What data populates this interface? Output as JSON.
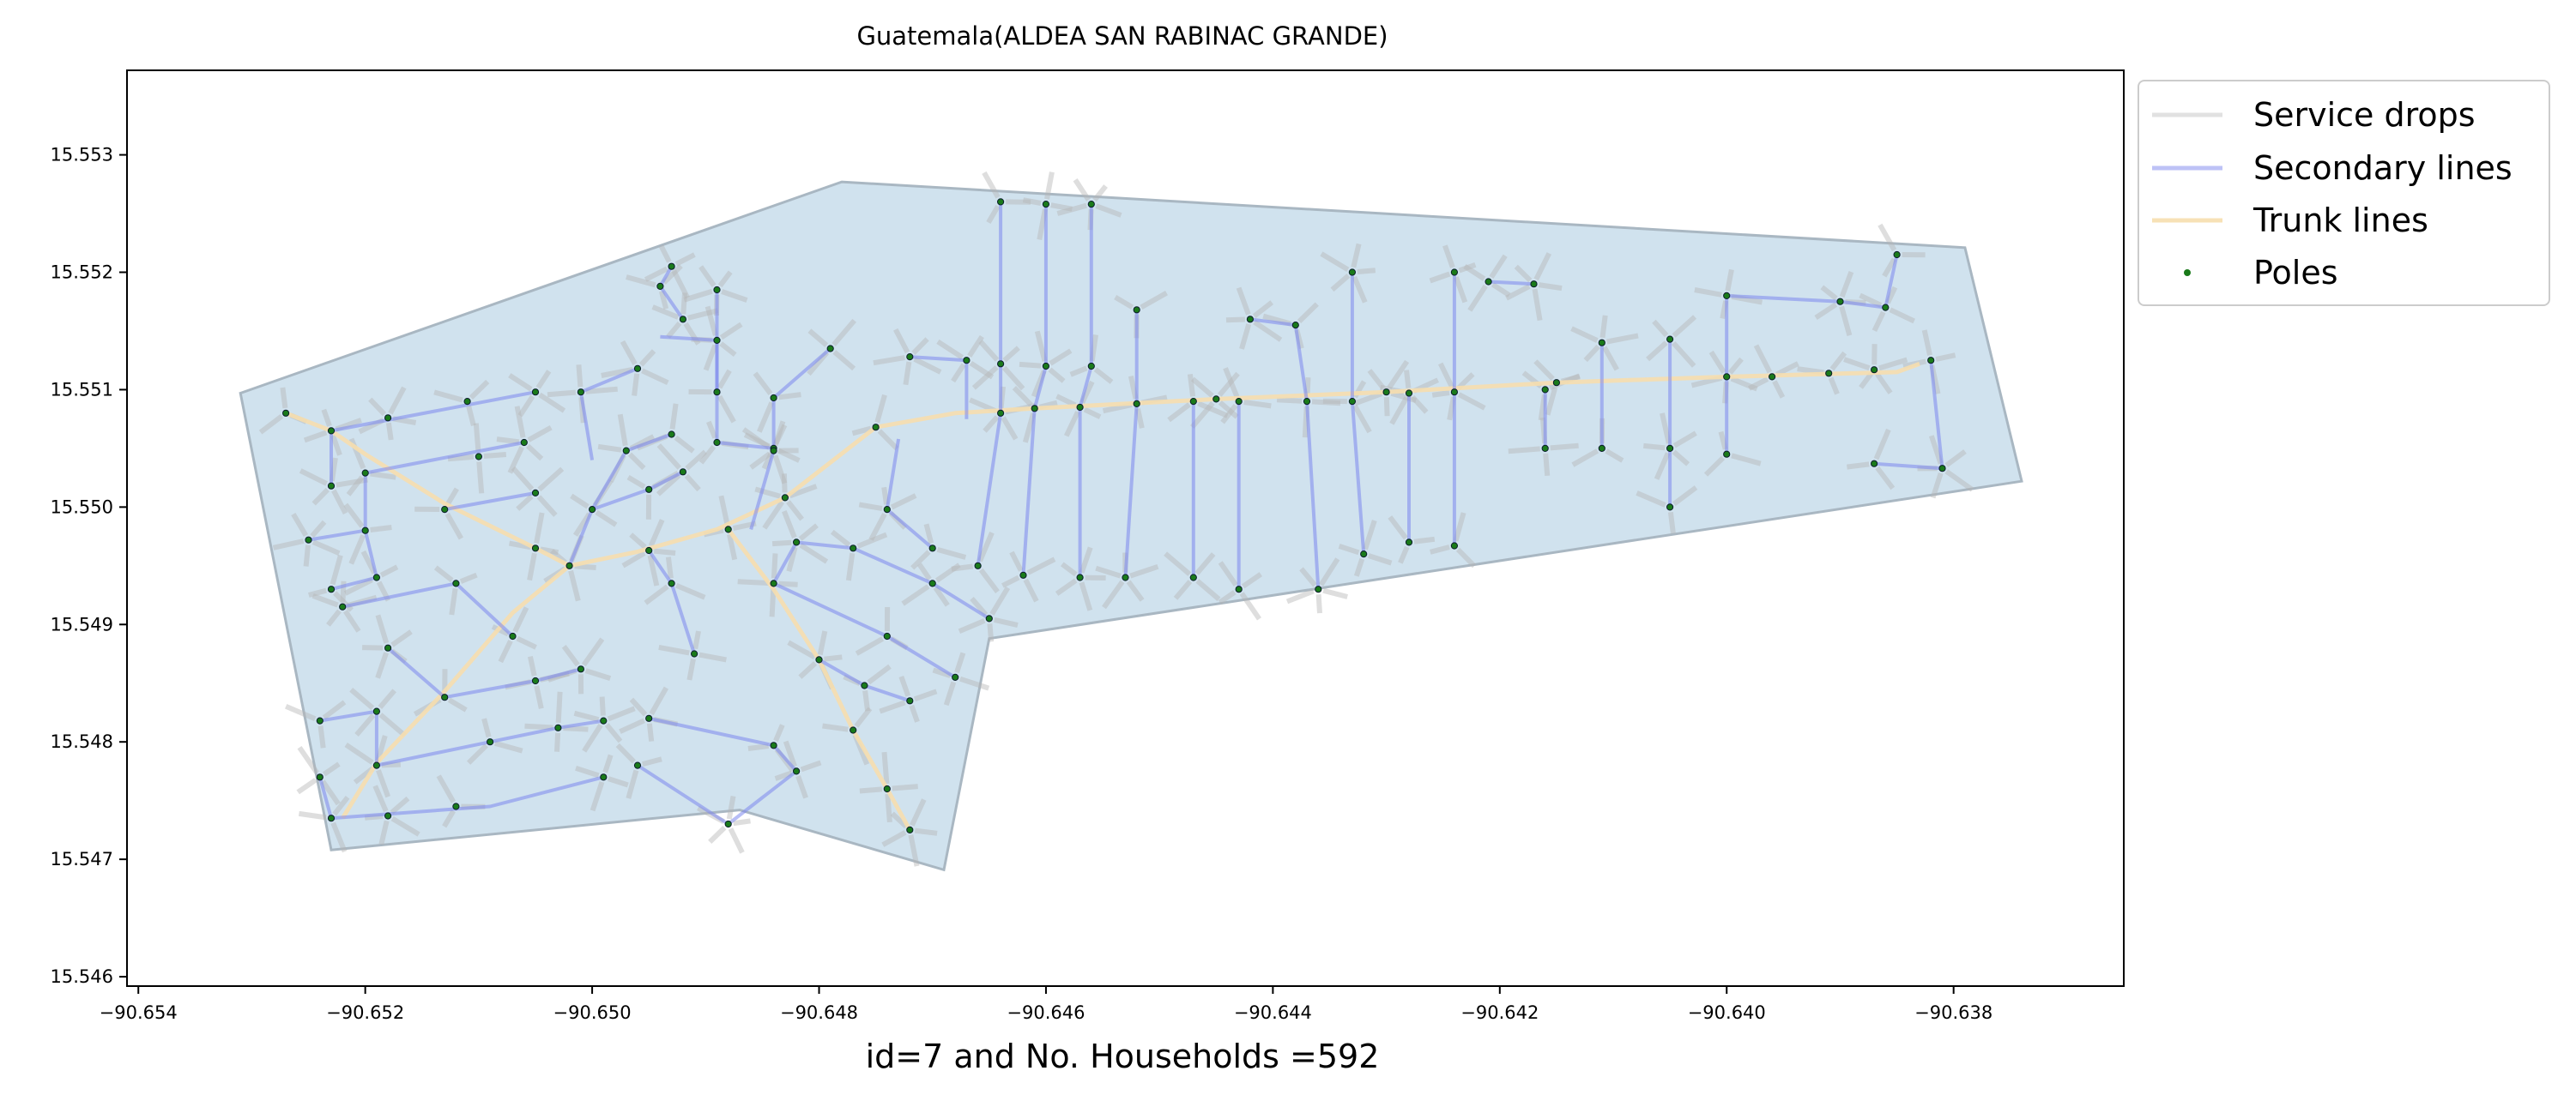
{
  "title": "Guatemala(ALDEA SAN RABINAC GRANDE)",
  "xlabel": "id=7 and No. Households =592",
  "ylabel": "",
  "colors": {
    "area_fill": "#d0e2ee",
    "area_edge": "#a9b7c2",
    "service_drops": "#b5b5b5",
    "secondary_lines": "#7c86ee",
    "trunk_lines": "#f6deae",
    "poles": "#1a7a1a",
    "pole_core": "#0b1c2c"
  },
  "legend": {
    "placement": "upper-right-outside",
    "items": [
      {
        "label": "Service drops",
        "kind": "line",
        "color_key": "service_drops"
      },
      {
        "label": "Secondary lines",
        "kind": "line",
        "color_key": "secondary_lines"
      },
      {
        "label": "Trunk lines",
        "kind": "line",
        "color_key": "trunk_lines"
      },
      {
        "label": "Poles",
        "kind": "dot",
        "color_key": "poles"
      }
    ]
  },
  "chart_data": {
    "type": "map",
    "title": "Guatemala(ALDEA SAN RABINAC GRANDE)",
    "xlabel": "id=7 and No. Households =592",
    "xlim": [
      -90.6541,
      -90.6365
    ],
    "ylim": [
      15.54592,
      15.55372
    ],
    "xticks": [
      -90.654,
      -90.652,
      -90.65,
      -90.648,
      -90.646,
      -90.644,
      -90.642,
      -90.64,
      -90.638
    ],
    "xtick_labels": [
      "−90.654",
      "−90.652",
      "−90.650",
      "−90.648",
      "−90.646",
      "−90.644",
      "−90.642",
      "−90.640",
      "−90.638"
    ],
    "yticks": [
      15.546,
      15.547,
      15.548,
      15.549,
      15.55,
      15.551,
      15.552,
      15.553
    ],
    "ytick_labels": [
      "15.546",
      "15.547",
      "15.548",
      "15.549",
      "15.550",
      "15.551",
      "15.552",
      "15.553"
    ],
    "grid": false,
    "boundary": [
      [
        -90.6531,
        15.55097
      ],
      [
        -90.6478,
        15.55277
      ],
      [
        -90.6379,
        15.55221
      ],
      [
        -90.6374,
        15.55022
      ],
      [
        -90.6465,
        15.54888
      ],
      [
        -90.6469,
        15.54691
      ],
      [
        -90.6487,
        15.54742
      ],
      [
        -90.6523,
        15.54708
      ],
      [
        -90.6531,
        15.55097
      ]
    ],
    "trunk_lines": [
      [
        [
          -90.6527,
          15.5508
        ],
        [
          -90.6523,
          15.55065
        ],
        [
          -90.652,
          15.55045
        ],
        [
          -90.6513,
          15.55003
        ],
        [
          -90.6505,
          15.54965
        ],
        [
          -90.6502,
          15.5495
        ],
        [
          -90.6496,
          15.54962
        ],
        [
          -90.6489,
          15.54981
        ],
        [
          -90.6483,
          15.55008
        ],
        [
          -90.6475,
          15.55068
        ],
        [
          -90.6468,
          15.5508
        ],
        [
          -90.6461,
          15.55084
        ],
        [
          -90.6445,
          15.55092
        ],
        [
          -90.643,
          15.55098
        ],
        [
          -90.6415,
          15.55106
        ],
        [
          -90.64,
          15.55111
        ],
        [
          -90.6385,
          15.55115
        ],
        [
          -90.6383,
          15.55122
        ]
      ],
      [
        [
          -90.6502,
          15.5495
        ],
        [
          -90.6507,
          15.5491
        ],
        [
          -90.6513,
          15.54843
        ],
        [
          -90.6519,
          15.54782
        ],
        [
          -90.6522,
          15.54735
        ]
      ],
      [
        [
          -90.6488,
          15.54981
        ],
        [
          -90.6484,
          15.5493
        ],
        [
          -90.648,
          15.5487
        ],
        [
          -90.6477,
          15.5481
        ],
        [
          -90.6474,
          15.5476
        ],
        [
          -90.6472,
          15.54725
        ]
      ]
    ],
    "secondary_lines": [
      [
        [
          -90.6523,
          15.55065
        ],
        [
          -90.6505,
          15.55098
        ]
      ],
      [
        [
          -90.6523,
          15.55065
        ],
        [
          -90.6523,
          15.55018
        ]
      ],
      [
        [
          -90.652,
          15.55029
        ],
        [
          -90.6506,
          15.55055
        ]
      ],
      [
        [
          -90.652,
          15.55029
        ],
        [
          -90.652,
          15.5498
        ],
        [
          -90.6525,
          15.54972
        ]
      ],
      [
        [
          -90.652,
          15.5498
        ],
        [
          -90.6519,
          15.5494
        ],
        [
          -90.6523,
          15.5493
        ]
      ],
      [
        [
          -90.6513,
          15.54998
        ],
        [
          -90.6505,
          15.55012
        ]
      ],
      [
        [
          -90.6522,
          15.54915
        ],
        [
          -90.6512,
          15.54935
        ],
        [
          -90.6507,
          15.5489
        ]
      ],
      [
        [
          -90.6518,
          15.5488
        ],
        [
          -90.6513,
          15.54838
        ],
        [
          -90.6505,
          15.54852
        ],
        [
          -90.6501,
          15.54862
        ]
      ],
      [
        [
          -90.6524,
          15.54818
        ],
        [
          -90.6519,
          15.54826
        ],
        [
          -90.6519,
          15.5478
        ]
      ],
      [
        [
          -90.6519,
          15.5478
        ],
        [
          -90.6509,
          15.548
        ],
        [
          -90.6503,
          15.54812
        ],
        [
          -90.6499,
          15.54818
        ]
      ],
      [
        [
          -90.6523,
          15.54735
        ],
        [
          -90.6509,
          15.54745
        ],
        [
          -90.6499,
          15.5477
        ]
      ],
      [
        [
          -90.6523,
          15.54735
        ],
        [
          -90.6524,
          15.5477
        ]
      ],
      [
        [
          -90.6495,
          15.5482
        ],
        [
          -90.6484,
          15.54797
        ],
        [
          -90.6482,
          15.54775
        ]
      ],
      [
        [
          -90.6482,
          15.54775
        ],
        [
          -90.6488,
          15.5473
        ],
        [
          -90.6496,
          15.5478
        ]
      ],
      [
        [
          -90.6502,
          15.5495
        ],
        [
          -90.65,
          15.54998
        ],
        [
          -90.6497,
          15.55048
        ],
        [
          -90.6493,
          15.55062
        ]
      ],
      [
        [
          -90.65,
          15.5504
        ],
        [
          -90.6501,
          15.55098
        ],
        [
          -90.6496,
          15.55118
        ]
      ],
      [
        [
          -90.65,
          15.54998
        ],
        [
          -90.6495,
          15.55015
        ],
        [
          -90.6492,
          15.5503
        ]
      ],
      [
        [
          -90.6495,
          15.54963
        ],
        [
          -90.6493,
          15.54935
        ],
        [
          -90.6491,
          15.54875
        ]
      ],
      [
        [
          -90.6492,
          15.5516
        ],
        [
          -90.6494,
          15.55188
        ],
        [
          -90.6493,
          15.55205
        ]
      ],
      [
        [
          -90.6494,
          15.55145
        ],
        [
          -90.6489,
          15.55142
        ],
        [
          -90.6489,
          15.55055
        ],
        [
          -90.6484,
          15.5505
        ]
      ],
      [
        [
          -90.6489,
          15.55185
        ],
        [
          -90.6489,
          15.55098
        ]
      ],
      [
        [
          -90.6486,
          15.54981
        ],
        [
          -90.6484,
          15.55048
        ],
        [
          -90.6484,
          15.55093
        ],
        [
          -90.6479,
          15.55135
        ]
      ],
      [
        [
          -90.6484,
          15.54935
        ],
        [
          -90.6482,
          15.5497
        ],
        [
          -90.6477,
          15.54965
        ],
        [
          -90.647,
          15.54935
        ],
        [
          -90.6465,
          15.54905
        ]
      ],
      [
        [
          -90.6484,
          15.54935
        ],
        [
          -90.6474,
          15.5489
        ],
        [
          -90.6468,
          15.54855
        ]
      ],
      [
        [
          -90.648,
          15.5487
        ],
        [
          -90.6476,
          15.54848
        ],
        [
          -90.6472,
          15.54835
        ]
      ],
      [
        [
          -90.6473,
          15.55058
        ],
        [
          -90.6474,
          15.54998
        ],
        [
          -90.647,
          15.54965
        ]
      ],
      [
        [
          -90.6467,
          15.55075
        ],
        [
          -90.6467,
          15.55125
        ],
        [
          -90.6472,
          15.55128
        ]
      ],
      [
        [
          -90.6464,
          15.5526
        ],
        [
          -90.6464,
          15.55122
        ],
        [
          -90.6464,
          15.5508
        ],
        [
          -90.6466,
          15.5495
        ]
      ],
      [
        [
          -90.646,
          15.55258
        ],
        [
          -90.646,
          15.5512
        ],
        [
          -90.6461,
          15.55084
        ],
        [
          -90.6462,
          15.54942
        ]
      ],
      [
        [
          -90.6456,
          15.55258
        ],
        [
          -90.6456,
          15.5512
        ],
        [
          -90.6457,
          15.55085
        ],
        [
          -90.6457,
          15.5494
        ]
      ],
      [
        [
          -90.6452,
          15.55168
        ],
        [
          -90.6452,
          15.55088
        ],
        [
          -90.6453,
          15.5494
        ]
      ],
      [
        [
          -90.6447,
          15.5509
        ],
        [
          -90.6447,
          15.5494
        ]
      ],
      [
        [
          -90.6442,
          15.5516
        ],
        [
          -90.6438,
          15.55155
        ],
        [
          -90.6437,
          15.5509
        ],
        [
          -90.6436,
          15.5493
        ]
      ],
      [
        [
          -90.6443,
          15.5509
        ],
        [
          -90.6443,
          15.5493
        ]
      ],
      [
        [
          -90.6433,
          15.552
        ],
        [
          -90.6433,
          15.5509
        ],
        [
          -90.6432,
          15.5496
        ]
      ],
      [
        [
          -90.6428,
          15.55097
        ],
        [
          -90.6428,
          15.5497
        ]
      ],
      [
        [
          -90.6424,
          15.552
        ],
        [
          -90.6424,
          15.55098
        ],
        [
          -90.6424,
          15.54967
        ]
      ],
      [
        [
          -90.6421,
          15.55192
        ],
        [
          -90.6417,
          15.5519
        ]
      ],
      [
        [
          -90.6416,
          15.551
        ],
        [
          -90.6416,
          15.5505
        ]
      ],
      [
        [
          -90.6411,
          15.5514
        ],
        [
          -90.6411,
          15.5505
        ]
      ],
      [
        [
          -90.6405,
          15.55143
        ],
        [
          -90.6405,
          15.5505
        ],
        [
          -90.6405,
          15.55
        ]
      ],
      [
        [
          -90.64,
          15.5518
        ],
        [
          -90.64,
          15.55045
        ]
      ],
      [
        [
          -90.64,
          15.5518
        ],
        [
          -90.639,
          15.55175
        ],
        [
          -90.6386,
          15.5517
        ]
      ],
      [
        [
          -90.6386,
          15.5517
        ],
        [
          -90.6385,
          15.55215
        ]
      ],
      [
        [
          -90.6382,
          15.55125
        ],
        [
          -90.6381,
          15.55033
        ],
        [
          -90.6387,
          15.55037
        ]
      ]
    ],
    "poles": [
      [
        -90.6527,
        15.5508
      ],
      [
        -90.6523,
        15.55065
      ],
      [
        -90.6518,
        15.55076
      ],
      [
        -90.6511,
        15.5509
      ],
      [
        -90.6505,
        15.55098
      ],
      [
        -90.6523,
        15.55018
      ],
      [
        -90.652,
        15.55029
      ],
      [
        -90.651,
        15.55043
      ],
      [
        -90.6506,
        15.55055
      ],
      [
        -90.6513,
        15.54998
      ],
      [
        -90.6505,
        15.55012
      ],
      [
        -90.6525,
        15.54972
      ],
      [
        -90.652,
        15.5498
      ],
      [
        -90.6505,
        15.54965
      ],
      [
        -90.6502,
        15.5495
      ],
      [
        -90.6523,
        15.5493
      ],
      [
        -90.6519,
        15.5494
      ],
      [
        -90.6522,
        15.54915
      ],
      [
        -90.6512,
        15.54935
      ],
      [
        -90.6507,
        15.5489
      ],
      [
        -90.6518,
        15.5488
      ],
      [
        -90.6513,
        15.54838
      ],
      [
        -90.6505,
        15.54852
      ],
      [
        -90.6501,
        15.54862
      ],
      [
        -90.6524,
        15.54818
      ],
      [
        -90.6519,
        15.54826
      ],
      [
        -90.6519,
        15.5478
      ],
      [
        -90.6509,
        15.548
      ],
      [
        -90.6503,
        15.54812
      ],
      [
        -90.6499,
        15.54818
      ],
      [
        -90.6523,
        15.54735
      ],
      [
        -90.6524,
        15.5477
      ],
      [
        -90.6518,
        15.54737
      ],
      [
        -90.6512,
        15.54745
      ],
      [
        -90.6499,
        15.5477
      ],
      [
        -90.6495,
        15.5482
      ],
      [
        -90.6484,
        15.54797
      ],
      [
        -90.6482,
        15.54775
      ],
      [
        -90.6488,
        15.5473
      ],
      [
        -90.6496,
        15.5478
      ],
      [
        -90.65,
        15.54998
      ],
      [
        -90.6497,
        15.55048
      ],
      [
        -90.6493,
        15.55062
      ],
      [
        -90.6501,
        15.55098
      ],
      [
        -90.6496,
        15.55118
      ],
      [
        -90.6495,
        15.55015
      ],
      [
        -90.6492,
        15.5503
      ],
      [
        -90.6495,
        15.54963
      ],
      [
        -90.6493,
        15.54935
      ],
      [
        -90.6491,
        15.54875
      ],
      [
        -90.6492,
        15.5516
      ],
      [
        -90.6494,
        15.55188
      ],
      [
        -90.6493,
        15.55205
      ],
      [
        -90.6489,
        15.55142
      ],
      [
        -90.6489,
        15.55055
      ],
      [
        -90.6484,
        15.5505
      ],
      [
        -90.6489,
        15.55185
      ],
      [
        -90.6489,
        15.55098
      ],
      [
        -90.6488,
        15.54981
      ],
      [
        -90.6484,
        15.55048
      ],
      [
        -90.6484,
        15.55093
      ],
      [
        -90.6479,
        15.55135
      ],
      [
        -90.6483,
        15.55008
      ],
      [
        -90.6475,
        15.55068
      ],
      [
        -90.6484,
        15.54935
      ],
      [
        -90.6482,
        15.5497
      ],
      [
        -90.6477,
        15.54965
      ],
      [
        -90.647,
        15.54935
      ],
      [
        -90.6465,
        15.54905
      ],
      [
        -90.6474,
        15.5489
      ],
      [
        -90.6468,
        15.54855
      ],
      [
        -90.648,
        15.5487
      ],
      [
        -90.6476,
        15.54848
      ],
      [
        -90.6472,
        15.54835
      ],
      [
        -90.6474,
        15.54998
      ],
      [
        -90.647,
        15.54965
      ],
      [
        -90.6467,
        15.55125
      ],
      [
        -90.6472,
        15.55128
      ],
      [
        -90.6477,
        15.5481
      ],
      [
        -90.6474,
        15.5476
      ],
      [
        -90.6472,
        15.54725
      ],
      [
        -90.6464,
        15.5526
      ],
      [
        -90.6464,
        15.55122
      ],
      [
        -90.6464,
        15.5508
      ],
      [
        -90.6466,
        15.5495
      ],
      [
        -90.646,
        15.55258
      ],
      [
        -90.646,
        15.5512
      ],
      [
        -90.6461,
        15.55084
      ],
      [
        -90.6462,
        15.54942
      ],
      [
        -90.6456,
        15.55258
      ],
      [
        -90.6456,
        15.5512
      ],
      [
        -90.6457,
        15.55085
      ],
      [
        -90.6457,
        15.5494
      ],
      [
        -90.6452,
        15.55168
      ],
      [
        -90.6452,
        15.55088
      ],
      [
        -90.6453,
        15.5494
      ],
      [
        -90.6447,
        15.5509
      ],
      [
        -90.6447,
        15.5494
      ],
      [
        -90.6442,
        15.5516
      ],
      [
        -90.6438,
        15.55155
      ],
      [
        -90.6437,
        15.5509
      ],
      [
        -90.6436,
        15.5493
      ],
      [
        -90.6443,
        15.5509
      ],
      [
        -90.6443,
        15.5493
      ],
      [
        -90.6433,
        15.552
      ],
      [
        -90.6433,
        15.5509
      ],
      [
        -90.6432,
        15.5496
      ],
      [
        -90.6428,
        15.55097
      ],
      [
        -90.6428,
        15.5497
      ],
      [
        -90.6424,
        15.552
      ],
      [
        -90.6424,
        15.55098
      ],
      [
        -90.6424,
        15.54967
      ],
      [
        -90.6421,
        15.55192
      ],
      [
        -90.6417,
        15.5519
      ],
      [
        -90.6416,
        15.551
      ],
      [
        -90.6416,
        15.5505
      ],
      [
        -90.6411,
        15.5514
      ],
      [
        -90.6411,
        15.5505
      ],
      [
        -90.6405,
        15.55143
      ],
      [
        -90.6405,
        15.5505
      ],
      [
        -90.6405,
        15.55
      ],
      [
        -90.64,
        15.5518
      ],
      [
        -90.64,
        15.55111
      ],
      [
        -90.64,
        15.55045
      ],
      [
        -90.6396,
        15.55111
      ],
      [
        -90.639,
        15.55175
      ],
      [
        -90.6391,
        15.55114
      ],
      [
        -90.6386,
        15.5517
      ],
      [
        -90.6387,
        15.55117
      ],
      [
        -90.6385,
        15.55215
      ],
      [
        -90.6382,
        15.55125
      ],
      [
        -90.6381,
        15.55033
      ],
      [
        -90.6387,
        15.55037
      ],
      [
        -90.6445,
        15.55092
      ],
      [
        -90.643,
        15.55098
      ],
      [
        -90.6415,
        15.55106
      ]
    ]
  }
}
